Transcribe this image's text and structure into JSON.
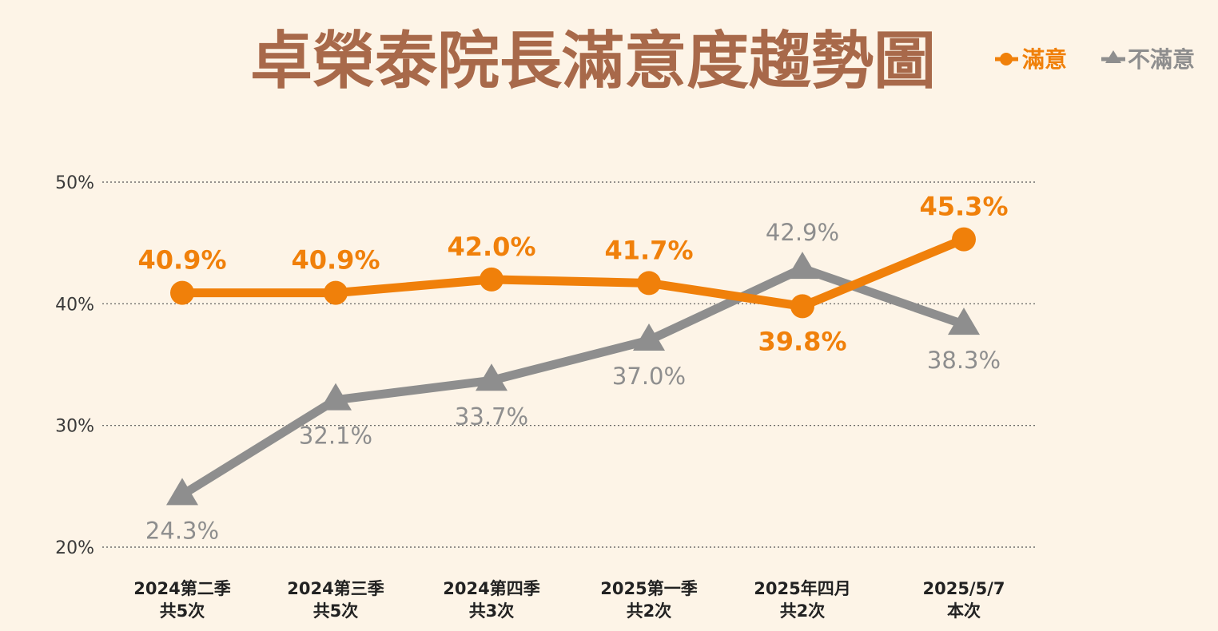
{
  "chart_data": {
    "type": "line",
    "title": "卓榮泰院長滿意度趨勢圖",
    "categories": [
      [
        "2024第二季",
        "共5次"
      ],
      [
        "2024第三季",
        "共5次"
      ],
      [
        "2024第四季",
        "共3次"
      ],
      [
        "2025第一季",
        "共2次"
      ],
      [
        "2025年四月",
        "共2次"
      ],
      [
        "2025/5/7",
        "本次"
      ]
    ],
    "y_ticks": [
      "50%",
      "40%",
      "30%",
      "20%"
    ],
    "ylim": [
      20,
      50
    ],
    "grid": true,
    "legend_position": "top-right",
    "series": [
      {
        "name": "滿意",
        "marker": "circle",
        "color": "#f0800a",
        "values": [
          40.9,
          40.9,
          42.0,
          41.7,
          39.8,
          45.3
        ],
        "labels": [
          "40.9%",
          "40.9%",
          "42.0%",
          "41.7%",
          "39.8%",
          "45.3%"
        ]
      },
      {
        "name": "不滿意",
        "marker": "triangle",
        "color": "#8e8e8e",
        "values": [
          24.3,
          32.1,
          33.7,
          37.0,
          42.9,
          38.3
        ],
        "labels": [
          "24.3%",
          "32.1%",
          "33.7%",
          "37.0%",
          "42.9%",
          "38.3%"
        ]
      }
    ]
  }
}
